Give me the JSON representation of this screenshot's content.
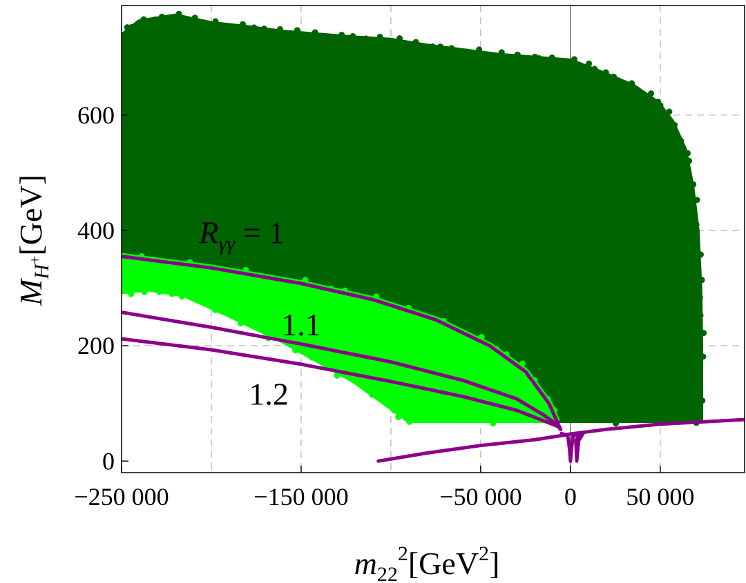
{
  "chart_data": {
    "type": "scatter",
    "xlabel": {
      "base": "m",
      "sub": "22",
      "sup": "2",
      "unit_prefix": "[GeV",
      "unit_sup": "2",
      "unit_suffix": "]"
    },
    "ylabel": {
      "base": "M",
      "sub": "H",
      "subsup": "+",
      "unit": "[GeV]"
    },
    "xlim": [
      -250000,
      97000
    ],
    "ylim": [
      -20,
      790
    ],
    "x_ticks": [
      {
        "value": -250000,
        "label": "−250 000"
      },
      {
        "value": -150000,
        "label": "−150 000"
      },
      {
        "value": -50000,
        "label": "−50 000"
      },
      {
        "value": 0,
        "label": "0"
      },
      {
        "value": 50000,
        "label": "50 000"
      }
    ],
    "y_ticks": [
      {
        "value": 0,
        "label": "0"
      },
      {
        "value": 200,
        "label": "200"
      },
      {
        "value": 400,
        "label": "400"
      },
      {
        "value": 600,
        "label": "600"
      }
    ],
    "grid": {
      "dashed_x": [
        -200000,
        -150000,
        -100000,
        -50000,
        50000
      ],
      "dashed_y": [
        200,
        400,
        600
      ]
    },
    "colors": {
      "allowed_points": "#006400",
      "enhanced_points": "#00ff00",
      "contour": "#8b008b",
      "axis": "#000000",
      "grid": "#b0b0b0"
    },
    "series": [
      {
        "name": "allowed-region",
        "color": "#006400",
        "boundary": [
          [
            -250000,
            355
          ],
          [
            -250000,
            735
          ],
          [
            -240000,
            760
          ],
          [
            -220000,
            770
          ],
          [
            -200000,
            757
          ],
          [
            -180000,
            750
          ],
          [
            -160000,
            742
          ],
          [
            -140000,
            737
          ],
          [
            -120000,
            732
          ],
          [
            -100000,
            728
          ],
          [
            -80000,
            718
          ],
          [
            -60000,
            710
          ],
          [
            -40000,
            702
          ],
          [
            -20000,
            697
          ],
          [
            0,
            692
          ],
          [
            10000,
            680
          ],
          [
            20000,
            668
          ],
          [
            35000,
            648
          ],
          [
            48000,
            620
          ],
          [
            56000,
            588
          ],
          [
            63000,
            540
          ],
          [
            67000,
            478
          ],
          [
            70000,
            400
          ],
          [
            71500,
            300
          ],
          [
            72000,
            200
          ],
          [
            72000,
            72
          ],
          [
            -8000,
            72
          ],
          [
            -12000,
            100
          ],
          [
            -25000,
            155
          ],
          [
            -45000,
            200
          ],
          [
            -75000,
            245
          ],
          [
            -110000,
            280
          ],
          [
            -150000,
            308
          ],
          [
            -200000,
            335
          ]
        ]
      },
      {
        "name": "enhanced-region",
        "color": "#00ff00",
        "boundary": [
          [
            -250000,
            355
          ],
          [
            -200000,
            335
          ],
          [
            -150000,
            308
          ],
          [
            -110000,
            280
          ],
          [
            -75000,
            245
          ],
          [
            -45000,
            200
          ],
          [
            -25000,
            155
          ],
          [
            -12000,
            100
          ],
          [
            -8000,
            72
          ],
          [
            -90000,
            72
          ],
          [
            -100000,
            95
          ],
          [
            -120000,
            140
          ],
          [
            -160000,
            210
          ],
          [
            -190000,
            255
          ],
          [
            -215000,
            290
          ],
          [
            -235000,
            300
          ],
          [
            -250000,
            295
          ]
        ]
      },
      {
        "name": "R-1.0-contour",
        "color": "#8b008b",
        "points": [
          [
            -250000,
            355
          ],
          [
            -200000,
            335
          ],
          [
            -150000,
            308
          ],
          [
            -110000,
            280
          ],
          [
            -75000,
            245
          ],
          [
            -45000,
            200
          ],
          [
            -25000,
            155
          ],
          [
            -12000,
            100
          ],
          [
            -6500,
            62
          ],
          [
            -5500,
            55
          ]
        ]
      },
      {
        "name": "R-1.1-contour",
        "color": "#8b008b",
        "points": [
          [
            -250000,
            258
          ],
          [
            -200000,
            232
          ],
          [
            -150000,
            203
          ],
          [
            -100000,
            172
          ],
          [
            -60000,
            140
          ],
          [
            -30000,
            108
          ],
          [
            -15000,
            80
          ],
          [
            -7000,
            62
          ],
          [
            -5500,
            55
          ]
        ]
      },
      {
        "name": "R-1.2-contour",
        "color": "#8b008b",
        "points": [
          [
            -250000,
            212
          ],
          [
            -200000,
            193
          ],
          [
            -150000,
            168
          ],
          [
            -100000,
            138
          ],
          [
            -60000,
            112
          ],
          [
            -30000,
            88
          ],
          [
            -15000,
            70
          ],
          [
            -7000,
            60
          ],
          [
            -5500,
            55
          ]
        ]
      },
      {
        "name": "low-mass-contour",
        "color": "#8b008b",
        "points": [
          [
            -107000,
            0
          ],
          [
            -80000,
            14
          ],
          [
            -50000,
            27
          ],
          [
            -20000,
            37
          ],
          [
            -5500,
            44
          ],
          [
            0,
            47
          ],
          [
            20000,
            55
          ],
          [
            50000,
            64
          ],
          [
            97000,
            72
          ]
        ]
      },
      {
        "name": "spike-contour",
        "color": "#8b008b",
        "points": [
          [
            -5000,
            48
          ],
          [
            -1500,
            44
          ],
          [
            -500,
            20
          ],
          [
            0,
            0
          ],
          [
            500,
            20
          ],
          [
            1500,
            44
          ],
          [
            5000,
            48
          ],
          [
            3000,
            35
          ],
          [
            3500,
            0
          ],
          [
            4500,
            35
          ],
          [
            7000,
            48
          ]
        ]
      }
    ],
    "annotations": [
      {
        "text_base": "R",
        "text_sub": "γγ",
        "text_rest": " = 1",
        "x": -183000,
        "y": 378
      },
      {
        "text": "1.1",
        "x": -150000,
        "y": 218
      },
      {
        "text": "1.2",
        "x": -168000,
        "y": 98
      }
    ]
  }
}
